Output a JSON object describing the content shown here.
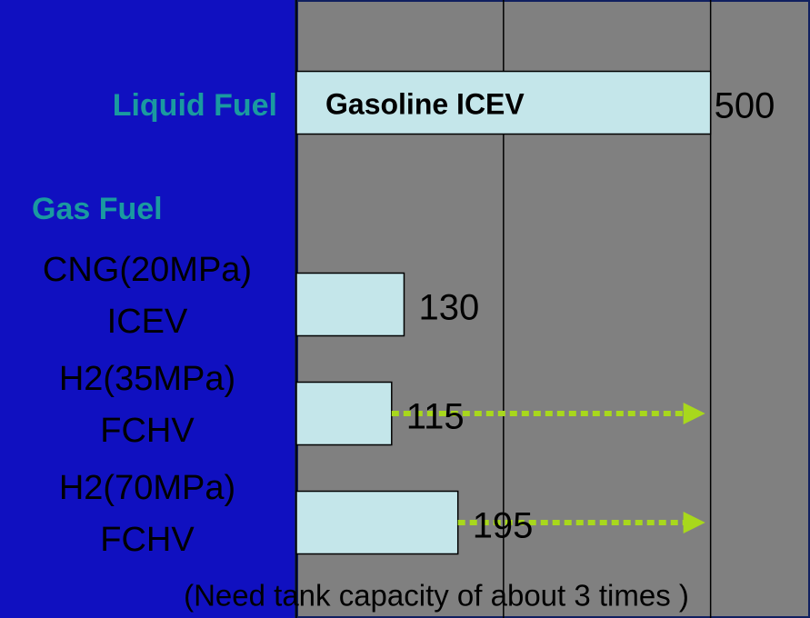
{
  "chart_data": {
    "type": "barh",
    "groups": [
      "Liquid Fuel",
      "Gas Fuel"
    ],
    "categories": [
      [
        "Gasoline ICEV"
      ],
      [
        "CNG(20MPa)",
        "ICEV"
      ],
      [
        "H2(35MPa)",
        "FCHV"
      ],
      [
        "H2(70MPa)",
        "FCHV"
      ]
    ],
    "values": [
      500,
      130,
      115,
      195
    ],
    "color": "#c4e6ea",
    "xlim": [
      0,
      620
    ],
    "xticks": [
      0,
      250,
      500
    ],
    "grid": true,
    "arrows": [
      {
        "from": 2,
        "to": 0
      },
      {
        "from": 3,
        "to": 0
      }
    ],
    "arrow_color": "#a8d81c",
    "annotation": "(Need tank capacity of about 3 times )"
  }
}
